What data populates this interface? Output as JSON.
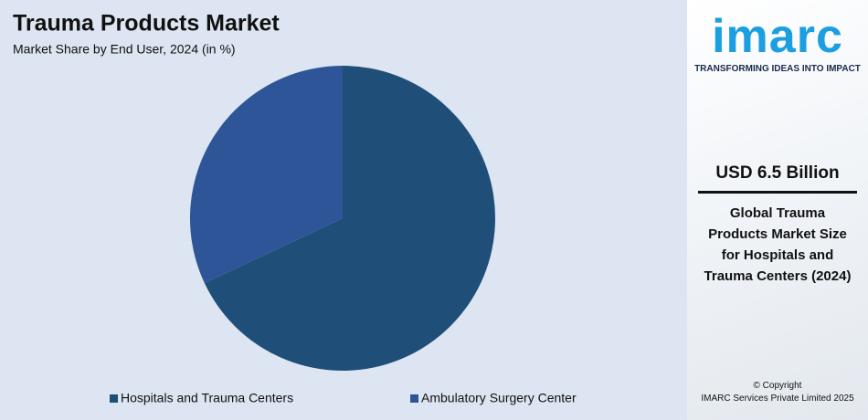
{
  "chart_data": {
    "type": "pie",
    "title": "Trauma Products Market",
    "subtitle": "Market Share by End User, 2024 (in %)",
    "categories": [
      "Hospitals and Trauma Centers",
      "Ambulatory Surgery Center"
    ],
    "values": [
      68,
      32
    ],
    "colors": [
      "#1f4e79",
      "#2e5597"
    ]
  },
  "sidebar": {
    "logo": "imarc",
    "tagline": "TRANSFORMING IDEAS INTO IMPACT",
    "headline": "USD 6.5 Billion",
    "description": "Global Trauma Products Market Size for Hospitals and Trauma Centers (2024)",
    "copyright": "© Copyright",
    "owner": "IMARC Services Private Limited 2025"
  }
}
